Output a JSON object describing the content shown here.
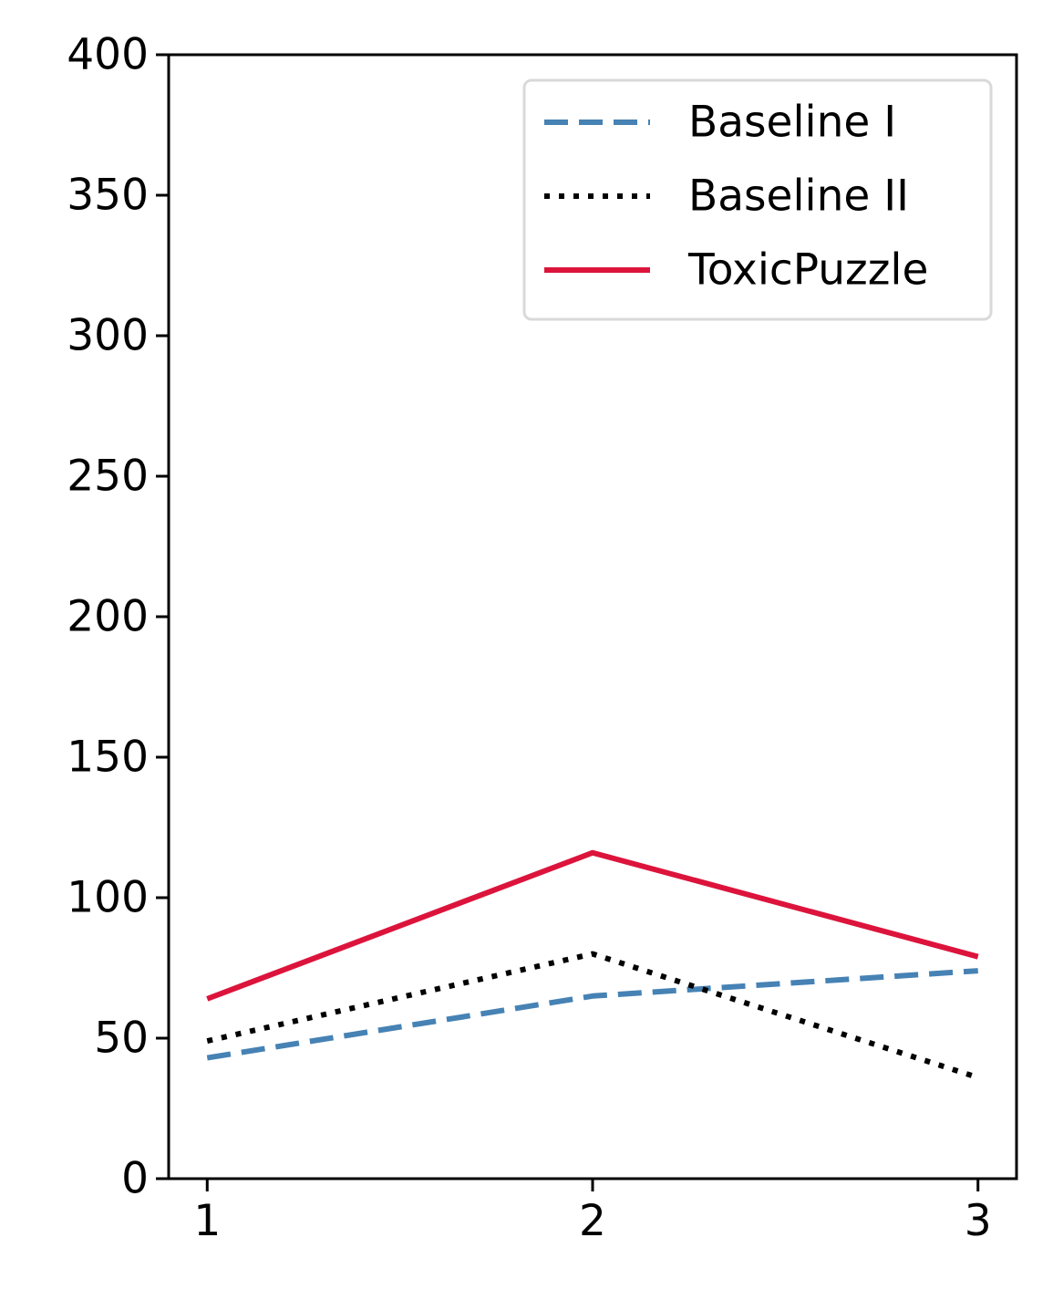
{
  "chart_data": {
    "type": "line",
    "title": "",
    "xlabel": "",
    "ylabel": "",
    "x": [
      1,
      2,
      3
    ],
    "xticks": [
      "1",
      "2",
      "3"
    ],
    "xlim": [
      0.9,
      3.1
    ],
    "ylim": [
      0,
      400
    ],
    "yticks": [
      "0",
      "50",
      "100",
      "150",
      "200",
      "250",
      "300",
      "350",
      "400"
    ],
    "grid": false,
    "legend": {
      "position": "top-right"
    },
    "series": [
      {
        "name": "Baseline I",
        "values": [
          43,
          65,
          74
        ],
        "color": "#4682b4",
        "style": "dashed"
      },
      {
        "name": "Baseline II",
        "values": [
          49,
          80,
          36
        ],
        "color": "#000000",
        "style": "dotted"
      },
      {
        "name": "ToxicPuzzle",
        "values": [
          64,
          116,
          79
        ],
        "color": "#dc143c",
        "style": "solid"
      }
    ]
  }
}
